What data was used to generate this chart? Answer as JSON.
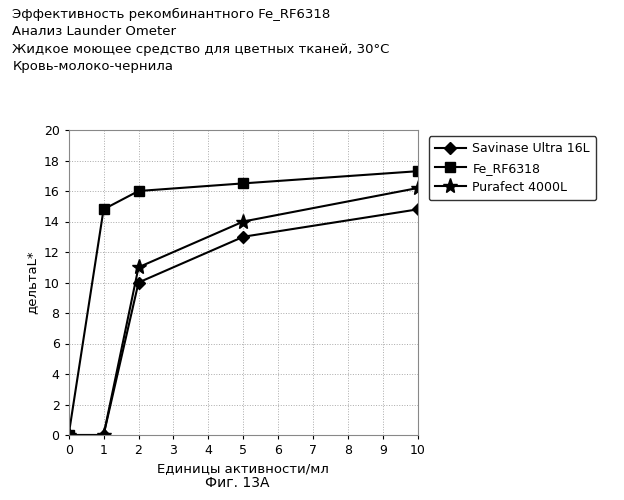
{
  "title_lines": [
    "Эффективность рекомбинантного Fe_RF6318",
    "Анализ Launder Ometer",
    "Жидкое моющее средство для цветных тканей, 30°C",
    "Кровь-молоко-чернила"
  ],
  "xlabel": "Единицы активности/мл",
  "ylabel": "дельтаL*",
  "caption": "Фиг. 13A",
  "xlim": [
    0,
    10
  ],
  "ylim": [
    0,
    20
  ],
  "xticks": [
    0,
    1,
    2,
    3,
    4,
    5,
    6,
    7,
    8,
    9,
    10
  ],
  "yticks": [
    0,
    2,
    4,
    6,
    8,
    10,
    12,
    14,
    16,
    18,
    20
  ],
  "series": [
    {
      "label": "Savinase Ultra 16L",
      "x": [
        0,
        1,
        2,
        5,
        10
      ],
      "y": [
        0,
        0,
        10.0,
        13.0,
        14.8
      ],
      "marker": "D",
      "color": "#000000",
      "linewidth": 1.5,
      "markersize": 6
    },
    {
      "label": "Fe_RF6318",
      "x": [
        0,
        1,
        2,
        5,
        10
      ],
      "y": [
        0,
        14.8,
        16.0,
        16.5,
        17.3
      ],
      "marker": "s",
      "color": "#000000",
      "linewidth": 1.5,
      "markersize": 7
    },
    {
      "label": "Purafect 4000L",
      "x": [
        0,
        1,
        2,
        5,
        10
      ],
      "y": [
        0,
        0,
        11.0,
        14.0,
        16.2
      ],
      "marker": "*",
      "color": "#000000",
      "linewidth": 1.5,
      "markersize": 11
    }
  ],
  "background_color": "#ffffff",
  "plot_bg_color": "#ffffff",
  "grid_color": "#aaaaaa",
  "title_fontsize": 9.5,
  "axis_fontsize": 9.5,
  "tick_fontsize": 9,
  "legend_fontsize": 9,
  "caption_fontsize": 10
}
